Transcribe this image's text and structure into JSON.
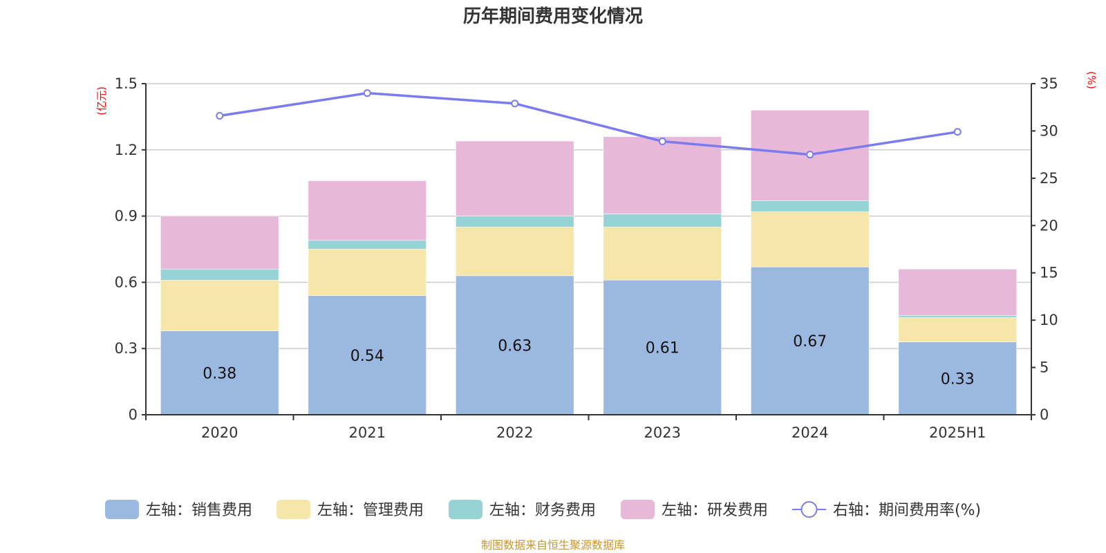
{
  "chart_data": {
    "type": "bar",
    "stacked": true,
    "title": "历年期间费用变化情况",
    "categories": [
      "2020",
      "2021",
      "2022",
      "2023",
      "2024",
      "2025H1"
    ],
    "left_axis": {
      "unit_label": "(亿元)",
      "ylim": [
        0,
        1.5
      ],
      "ticks": [
        0,
        0.3,
        0.6,
        0.9,
        1.2,
        1.5
      ],
      "tick_labels": [
        "0",
        "0.3",
        "0.6",
        "0.9",
        "1.2",
        "1.5"
      ]
    },
    "right_axis": {
      "unit_label": "(%)",
      "ylim": [
        0,
        35
      ],
      "ticks": [
        0,
        5,
        10,
        15,
        20,
        25,
        30,
        35
      ],
      "tick_labels": [
        "0",
        "5",
        "10",
        "15",
        "20",
        "25",
        "30",
        "35"
      ]
    },
    "grid": true,
    "series": [
      {
        "name": "左轴：销售费用",
        "axis": "left",
        "kind": "bar",
        "color": "#9bb8e1",
        "values": [
          0.38,
          0.54,
          0.63,
          0.61,
          0.67,
          0.33
        ],
        "labels": [
          "0.38",
          "0.54",
          "0.63",
          "0.61",
          "0.67",
          "0.33"
        ]
      },
      {
        "name": "左轴：管理费用",
        "axis": "left",
        "kind": "bar",
        "color": "#f7e6aa",
        "values": [
          0.23,
          0.21,
          0.22,
          0.24,
          0.25,
          0.11
        ]
      },
      {
        "name": "左轴：财务费用",
        "axis": "left",
        "kind": "bar",
        "color": "#96d3d5",
        "values": [
          0.05,
          0.04,
          0.05,
          0.06,
          0.05,
          0.01
        ]
      },
      {
        "name": "左轴：研发费用",
        "axis": "left",
        "kind": "bar",
        "color": "#e7b8d8",
        "values": [
          0.24,
          0.27,
          0.34,
          0.35,
          0.41,
          0.21
        ]
      },
      {
        "name": "右轴：期间费用率(%)",
        "axis": "right",
        "kind": "line",
        "color": "#7b7bf0",
        "values": [
          31.6,
          34.0,
          32.9,
          28.9,
          27.5,
          29.9
        ]
      }
    ],
    "legend_position": "bottom",
    "source": "制图数据来自恒生聚源数据库"
  }
}
